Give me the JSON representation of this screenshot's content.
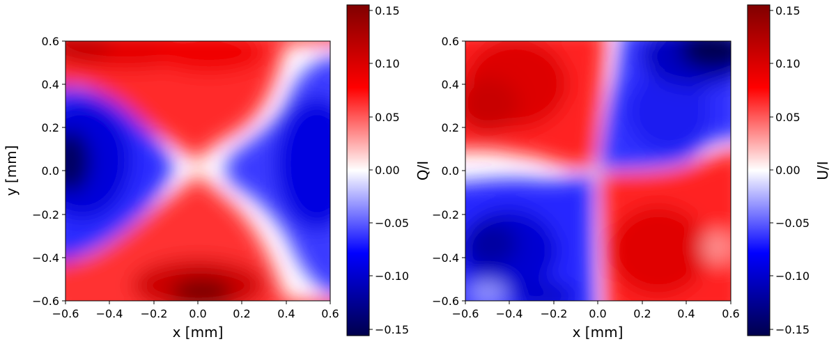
{
  "chart_data": [
    {
      "type": "heatmap",
      "panel": "left",
      "xlabel": "x [mm]",
      "ylabel": "y [mm]",
      "colorbar_label": "Q/I",
      "xlim": [
        -0.6,
        0.6
      ],
      "ylim": [
        -0.6,
        0.6
      ],
      "x_ticks": [
        "−0.6",
        "−0.4",
        "−0.2",
        "0.0",
        "0.2",
        "0.4",
        "0.6"
      ],
      "y_ticks": [
        "−0.6",
        "−0.4",
        "−0.2",
        "0.0",
        "0.2",
        "0.4",
        "0.6"
      ],
      "colorbar_range": [
        -0.155,
        0.155
      ],
      "colorbar_ticks": [
        "−0.15",
        "−0.10",
        "−0.05",
        "0.00",
        "0.05",
        "0.10",
        "0.15"
      ],
      "colormap": "seismic",
      "features": [
        {
          "x": -0.55,
          "y": 0.0,
          "value": -0.14
        },
        {
          "x": 0.5,
          "y": 0.05,
          "value": -0.11
        },
        {
          "x": 0.02,
          "y": -0.55,
          "value": 0.15
        },
        {
          "x": -0.25,
          "y": 0.55,
          "value": 0.11
        },
        {
          "x": 0.1,
          "y": 0.52,
          "value": 0.1
        }
      ]
    },
    {
      "type": "heatmap",
      "panel": "right",
      "xlabel": "x [mm]",
      "ylabel": "",
      "colorbar_label": "U/I",
      "xlim": [
        -0.6,
        0.6
      ],
      "ylim": [
        -0.6,
        0.6
      ],
      "x_ticks": [
        "−0.6",
        "−0.4",
        "−0.2",
        "0.0",
        "0.2",
        "0.4",
        "0.6"
      ],
      "y_ticks": [
        "−0.6",
        "−0.4",
        "−0.2",
        "0.0",
        "0.2",
        "0.4",
        "0.6"
      ],
      "colorbar_range": [
        -0.155,
        0.155
      ],
      "colorbar_ticks": [
        "−0.15",
        "−0.10",
        "−0.05",
        "0.00",
        "0.05",
        "0.10",
        "0.15"
      ],
      "colormap": "seismic",
      "features": [
        {
          "x": -0.35,
          "y": 0.33,
          "value": 0.11
        },
        {
          "x": 0.35,
          "y": 0.3,
          "value": -0.1
        },
        {
          "x": 0.52,
          "y": 0.52,
          "value": -0.15
        },
        {
          "x": -0.4,
          "y": -0.35,
          "value": -0.12
        },
        {
          "x": 0.35,
          "y": -0.35,
          "value": 0.11
        }
      ]
    }
  ]
}
